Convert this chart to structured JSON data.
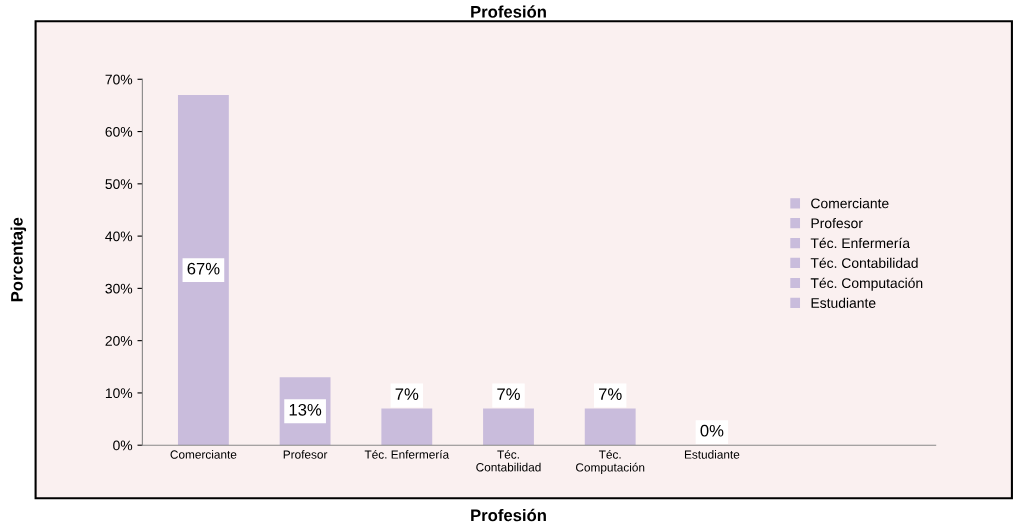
{
  "chart_data": {
    "type": "bar",
    "title": "Profesión",
    "xlabel": "Profesión",
    "ylabel": "Porcentaje",
    "categories": [
      "Comerciante",
      "Profesor",
      "Téc. Enfermería",
      "Téc.\nContabilidad",
      "Téc.\nComputación",
      "Estudiante"
    ],
    "series": [
      {
        "name": "Comerciante",
        "color": "#c9bcdc",
        "values": [
          67,
          null,
          null,
          null,
          null,
          null
        ],
        "value_labels": [
          "67%",
          null,
          null,
          null,
          null,
          null
        ]
      },
      {
        "name": "Profesor",
        "color": "#c9bcdc",
        "values": [
          null,
          13,
          null,
          null,
          null,
          null
        ],
        "value_labels": [
          null,
          "13%",
          null,
          null,
          null,
          null
        ]
      },
      {
        "name": "Téc. Enfermería",
        "color": "#c9bcdc",
        "values": [
          null,
          null,
          7,
          null,
          null,
          null
        ],
        "value_labels": [
          null,
          null,
          "7%",
          null,
          null,
          null
        ]
      },
      {
        "name": "Téc. Contabilidad",
        "color": "#c9bcdc",
        "values": [
          null,
          null,
          null,
          7,
          null,
          null
        ],
        "value_labels": [
          null,
          null,
          null,
          "7%",
          null,
          null
        ]
      },
      {
        "name": "Téc. Computación",
        "color": "#c9bcdc",
        "values": [
          null,
          null,
          null,
          null,
          7,
          null
        ],
        "value_labels": [
          null,
          null,
          null,
          null,
          "7%",
          null
        ]
      },
      {
        "name": "Estudiante",
        "color": "#c9bcdc",
        "values": [
          null,
          null,
          null,
          null,
          null,
          0
        ],
        "value_labels": [
          null,
          null,
          null,
          null,
          null,
          "0%"
        ]
      }
    ],
    "ylim": [
      0,
      70
    ],
    "yticks": [
      {
        "value": 0,
        "label": "0%"
      },
      {
        "value": 10,
        "label": "10%"
      },
      {
        "value": 20,
        "label": "20%"
      },
      {
        "value": 30,
        "label": "30%"
      },
      {
        "value": 40,
        "label": "40%"
      },
      {
        "value": 50,
        "label": "50%"
      },
      {
        "value": 60,
        "label": "60%"
      },
      {
        "value": 70,
        "label": "70%"
      }
    ],
    "grid": false,
    "legend": "right"
  }
}
